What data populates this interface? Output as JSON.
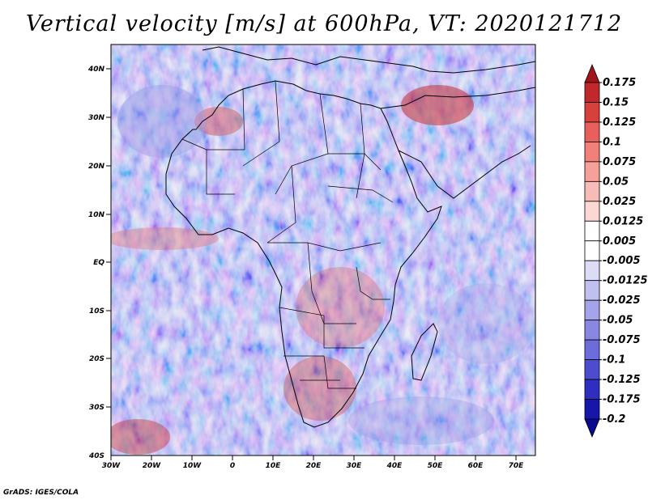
{
  "title": "Vertical velocity [m/s] at 600hPa, VT: 2020121712",
  "credit": "GrADS: IGES/COLA",
  "map": {
    "region": "Africa",
    "lon_range": [
      -30,
      75
    ],
    "lat_range": [
      -40,
      45
    ],
    "lon_ticks": [
      "30W",
      "20W",
      "10W",
      "0",
      "10E",
      "20E",
      "30E",
      "40E",
      "50E",
      "60E",
      "70E"
    ],
    "lat_ticks": [
      "40N",
      "30N",
      "20N",
      "10N",
      "EQ",
      "10S",
      "20S",
      "30S",
      "40S"
    ]
  },
  "colorbar": {
    "levels": [
      "0.175",
      "0.15",
      "0.125",
      "0.1",
      "0.075",
      "0.05",
      "0.025",
      "0.0125",
      "0.005",
      "-0.005",
      "-0.0125",
      "-0.025",
      "-0.05",
      "-0.075",
      "-0.1",
      "-0.125",
      "-0.175",
      "-0.2"
    ],
    "colors": [
      "#a0141c",
      "#c0282c",
      "#d8403c",
      "#e8605c",
      "#f08078",
      "#f5a098",
      "#f8bcb6",
      "#fbd8d4",
      "#ffffff",
      "#ffffff",
      "#dcdcf6",
      "#c0c0f0",
      "#a4a4ea",
      "#8888e2",
      "#6c6cda",
      "#4c4cce",
      "#2e2ec0",
      "#1616a8",
      "#0a0a90"
    ]
  }
}
